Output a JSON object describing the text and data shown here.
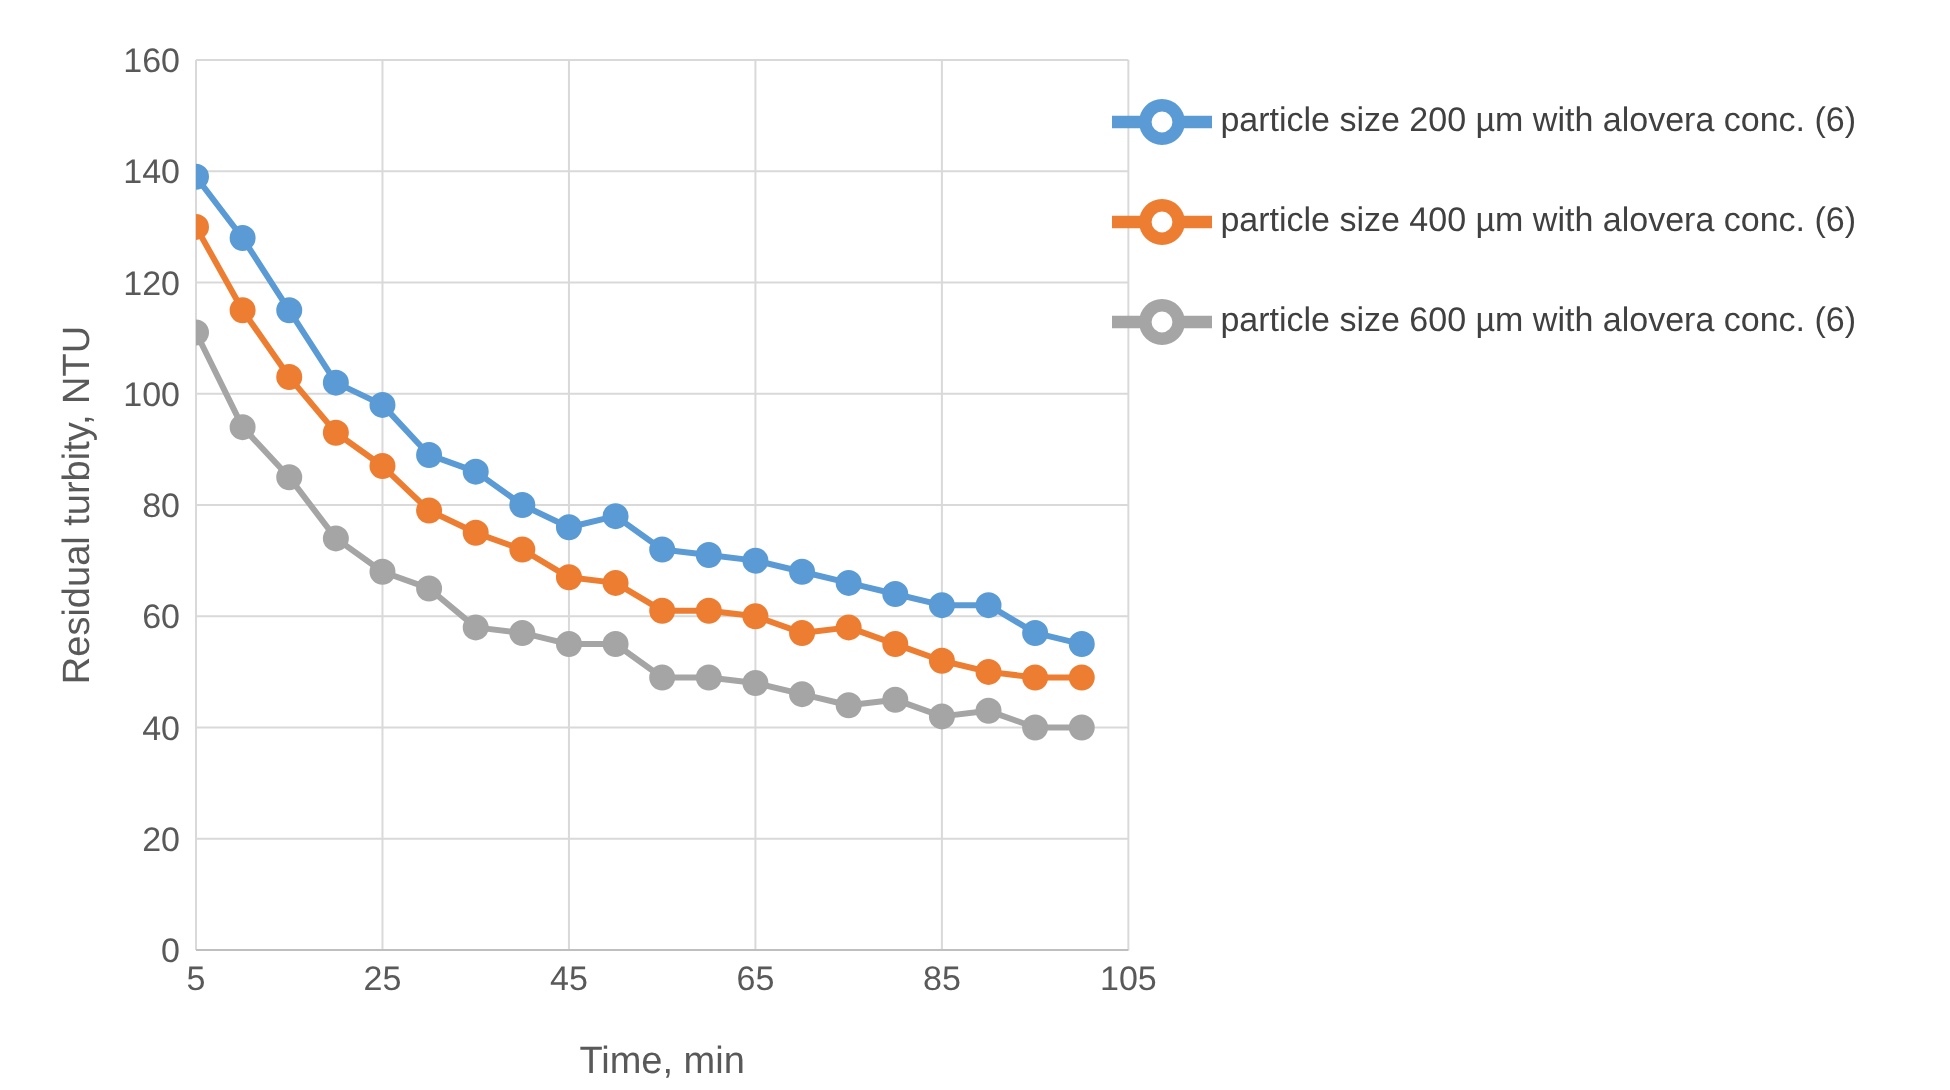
{
  "chart_data": {
    "type": "line",
    "xlabel": "Time, min",
    "ylabel": "Residual turbity, NTU",
    "x": [
      5,
      10,
      15,
      20,
      25,
      30,
      35,
      40,
      45,
      50,
      55,
      60,
      65,
      70,
      75,
      80,
      85,
      90,
      95,
      100
    ],
    "series": [
      {
        "name": "particle size 200 µm with alovera conc. (6)",
        "color": "#5b9bd5",
        "values": [
          139,
          128,
          115,
          102,
          98,
          89,
          86,
          80,
          76,
          78,
          72,
          71,
          70,
          68,
          66,
          64,
          62,
          62,
          57,
          55
        ]
      },
      {
        "name": "particle size 400 µm with alovera conc. (6)",
        "color": "#ed7d31",
        "values": [
          130,
          115,
          103,
          93,
          87,
          79,
          75,
          72,
          67,
          66,
          61,
          61,
          60,
          57,
          58,
          55,
          52,
          50,
          49,
          49
        ]
      },
      {
        "name": "particle size 600 µm with alovera conc. (6)",
        "color": "#a5a5a5",
        "values": [
          111,
          94,
          85,
          74,
          68,
          65,
          58,
          57,
          55,
          55,
          49,
          49,
          48,
          46,
          44,
          45,
          42,
          43,
          40,
          40
        ]
      }
    ],
    "xlim": [
      5,
      105
    ],
    "xticks": [
      5,
      25,
      45,
      65,
      85,
      105
    ],
    "ylim": [
      0,
      160
    ],
    "yticks": [
      0,
      20,
      40,
      60,
      80,
      100,
      120,
      140,
      160
    ],
    "grid": true,
    "legend": "top right",
    "marker": "circle",
    "line_style": "solid"
  }
}
